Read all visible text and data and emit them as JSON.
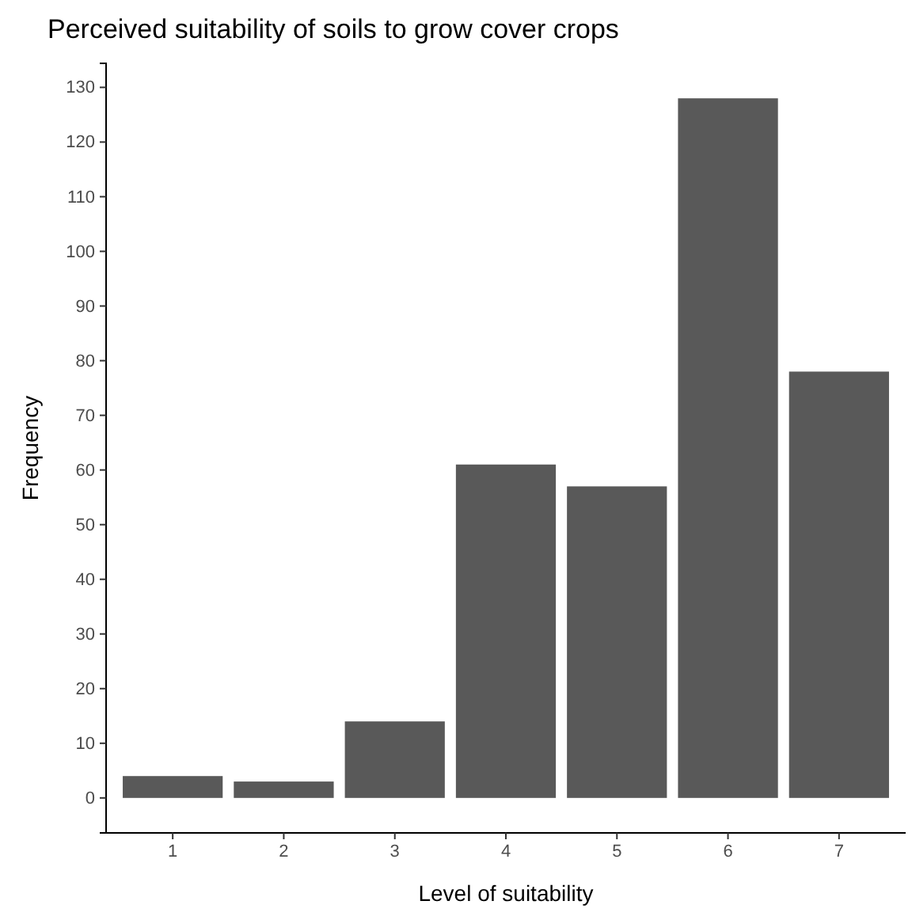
{
  "chart_data": {
    "type": "bar",
    "title": "Perceived suitability of soils to grow cover crops",
    "xlabel": "Level of suitability",
    "ylabel": "Frequency",
    "categories": [
      "1",
      "2",
      "3",
      "4",
      "5",
      "6",
      "7"
    ],
    "values": [
      4,
      3,
      14,
      61,
      57,
      128,
      78
    ],
    "color": "#595959",
    "ylim": [
      -6.4,
      134.4
    ],
    "yticks": [
      0,
      10,
      20,
      30,
      40,
      50,
      60,
      70,
      80,
      90,
      100,
      110,
      120,
      130
    ],
    "grid": false
  }
}
